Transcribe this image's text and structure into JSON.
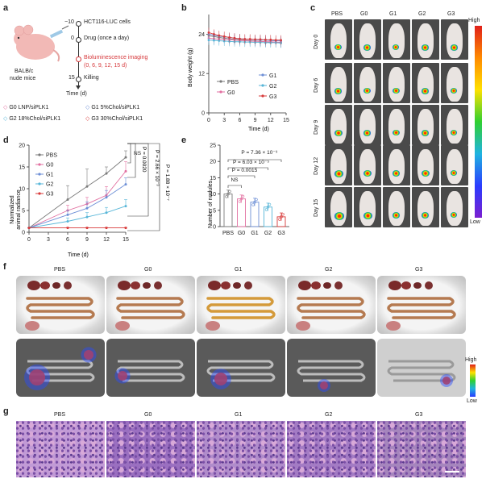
{
  "panel_letters": {
    "a": "a",
    "b": "b",
    "c": "c",
    "d": "d",
    "e": "e",
    "f": "f",
    "g": "g"
  },
  "panel_a": {
    "mouse_label_1": "BALB/c",
    "mouse_label_2": "nude mice",
    "timeline": [
      {
        "day": "−10",
        "text": "HCT116-LUC cells",
        "red": false
      },
      {
        "day": "0",
        "text": "Drug (once a day)",
        "red": false
      },
      {
        "day": "",
        "text": "Bioluminescence imaging",
        "red": true
      },
      {
        "day": "",
        "text": "(0, 6, 9, 12, 15 d)",
        "red": true
      },
      {
        "day": "15",
        "text": "Killing",
        "red": false
      }
    ],
    "time_axis": "Time (d)",
    "legend": [
      {
        "text": "G0 LNP/siPLK1",
        "color": "#e26fa0"
      },
      {
        "text": "G1 5%Chol/siPLK1",
        "color": "#6d8fd6"
      },
      {
        "text": "G2 18%Chol/siPLK1",
        "color": "#57b6d8"
      },
      {
        "text": "G3 30%Chol/siPLK1",
        "color": "#d83a3a"
      }
    ]
  },
  "colors": {
    "PBS": "#7b7b7b",
    "G0": "#e26fa0",
    "G1": "#6d8fd6",
    "G2": "#57b6d8",
    "G3": "#d83a3a"
  },
  "chart_data": [
    {
      "panel": "b",
      "type": "line",
      "xlabel": "Time (d)",
      "ylabel": "Body weight (g)",
      "x": [
        0,
        1,
        2,
        3,
        4,
        5,
        6,
        7,
        8,
        9,
        10,
        11,
        12,
        13,
        14
      ],
      "xticks": [
        "0",
        "3",
        "6",
        "9",
        "12",
        "15"
      ],
      "ylim": [
        0,
        30
      ],
      "yticks": [
        "0",
        "12",
        "24"
      ],
      "series": [
        {
          "name": "PBS",
          "values": [
            23.5,
            23.3,
            23.0,
            22.8,
            22.6,
            22.4,
            22.3,
            22.1,
            22.0,
            21.9,
            21.8,
            21.7,
            21.6,
            21.5,
            21.4
          ]
        },
        {
          "name": "G0",
          "values": [
            22.8,
            22.6,
            22.5,
            22.4,
            22.3,
            22.2,
            22.1,
            22.0,
            21.9,
            21.8,
            21.8,
            21.7,
            21.7,
            21.6,
            21.6
          ]
        },
        {
          "name": "G1",
          "values": [
            24.0,
            23.7,
            23.4,
            23.2,
            23.0,
            22.8,
            22.6,
            22.5,
            22.4,
            22.3,
            22.2,
            22.2,
            22.1,
            22.0,
            22.0
          ]
        },
        {
          "name": "G2",
          "values": [
            22.2,
            22.1,
            22.0,
            21.9,
            21.8,
            21.7,
            21.7,
            21.6,
            21.6,
            21.5,
            21.5,
            21.4,
            21.4,
            21.4,
            21.3
          ]
        },
        {
          "name": "G3",
          "values": [
            24.5,
            24.0,
            23.6,
            23.3,
            23.0,
            22.8,
            22.6,
            22.5,
            22.5,
            22.4,
            22.4,
            22.3,
            22.3,
            22.2,
            22.2
          ]
        }
      ]
    },
    {
      "panel": "d",
      "type": "line",
      "xlabel": "Time (d)",
      "ylabel": "Normalized animal radiance",
      "x": [
        0,
        6,
        9,
        12,
        15
      ],
      "xticks": [
        "0",
        "3",
        "6",
        "9",
        "12",
        "15"
      ],
      "ylim": [
        0,
        20
      ],
      "yticks": [
        "0",
        "5",
        "10",
        "15",
        "20"
      ],
      "series": [
        {
          "name": "PBS",
          "values": [
            1,
            7.5,
            10.5,
            13.5,
            17.2
          ],
          "errors": [
            0,
            3.2,
            4,
            1.5,
            1.5
          ]
        },
        {
          "name": "G0",
          "values": [
            1,
            5,
            6.5,
            8.5,
            14
          ],
          "errors": [
            0,
            1.2,
            1.5,
            2,
            2.2
          ]
        },
        {
          "name": "G1",
          "values": [
            1,
            4,
            5.5,
            8,
            11
          ],
          "errors": [
            0,
            1,
            1.5,
            1.6,
            1.5
          ]
        },
        {
          "name": "G2",
          "values": [
            1,
            2.5,
            3.5,
            4.5,
            6
          ],
          "errors": [
            0,
            0.8,
            1,
            1.2,
            1.5
          ]
        },
        {
          "name": "G3",
          "values": [
            1,
            1,
            1,
            1,
            1
          ],
          "errors": [
            0,
            0.1,
            0.1,
            0.1,
            0.1
          ]
        }
      ],
      "annotations": [
        "NS",
        "P = 0.0020",
        "P = 2.66 × 10⁻³",
        "P = 1.88 × 10⁻⁷"
      ]
    },
    {
      "panel": "e",
      "type": "bar",
      "ylabel": "Number of nodules",
      "categories": [
        "PBS",
        "G0",
        "G1",
        "G2",
        "G3"
      ],
      "values": [
        10,
        8.5,
        7.5,
        6,
        3
      ],
      "ylim": [
        0,
        25
      ],
      "yticks": [
        "0",
        "5",
        "10",
        "15",
        "20",
        "25"
      ],
      "annotations": [
        "NS",
        "P = 0.0015",
        "P = 6.03 × 10⁻⁵",
        "P = 7.36 × 10⁻⁹"
      ]
    }
  ],
  "panel_c": {
    "columns": [
      "PBS",
      "G0",
      "G1",
      "G2",
      "G3"
    ],
    "rows": [
      "Day 0",
      "Day 6",
      "Day 9",
      "Day 12",
      "Day 15"
    ],
    "scale_high": "High",
    "scale_low": "Low"
  },
  "panel_f": {
    "columns": [
      "PBS",
      "G0",
      "G1",
      "G2",
      "G3"
    ],
    "scale_high": "High",
    "scale_low": "Low"
  },
  "panel_g": {
    "columns": [
      "PBS",
      "G0",
      "G1",
      "G2",
      "G3"
    ]
  }
}
